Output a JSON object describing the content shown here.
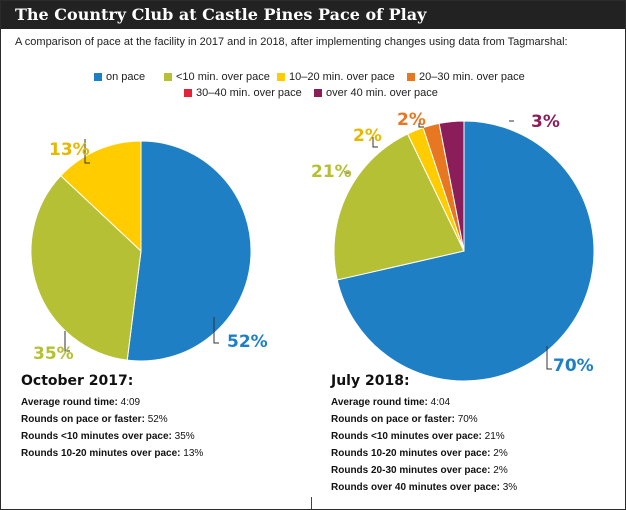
{
  "title": "The Country Club at Castle Pines Pace of Play",
  "subtitle": "A comparison of pace at the facility in 2017 and in 2018, after implementing changes using data from Tagmarshal:",
  "legend": [
    {
      "label": "on pace",
      "color": "#1f7fc4"
    },
    {
      "label": "<10 min. over pace",
      "color": "#b5c034"
    },
    {
      "label": "10–20 min. over pace",
      "color": "#ffcc00"
    },
    {
      "label": "20–30 min. over pace",
      "color": "#e87722"
    },
    {
      "label": "30–40 min. over pace",
      "color": "#e2233a"
    },
    {
      "label": "over 40 min. over pace",
      "color": "#8b1e5a"
    }
  ],
  "chart_data": [
    {
      "type": "pie",
      "categories": [
        "on pace",
        "<10 min. over pace",
        "10–20 min. over pace"
      ],
      "values": [
        52,
        35,
        13
      ],
      "labels": [
        "52%",
        "35%",
        "13%"
      ],
      "colors": [
        "#1f7fc4",
        "#b5c034",
        "#ffcc00"
      ]
    },
    {
      "type": "pie",
      "categories": [
        "on pace",
        "<10 min. over pace",
        "10–20 min. over pace",
        "20–30 min. over pace",
        "over 40 min. over pace"
      ],
      "values": [
        70,
        21,
        2,
        2,
        3
      ],
      "labels": [
        "70%",
        "21%",
        "2%",
        "2%",
        "3%"
      ],
      "colors": [
        "#1f7fc4",
        "#b5c034",
        "#ffcc00",
        "#e87722",
        "#8b1e5a"
      ]
    }
  ],
  "left": {
    "heading": "October 2017:",
    "rows": [
      {
        "k": "Average round time:",
        "v": "4:09"
      },
      {
        "k": "Rounds on pace or faster:",
        "v": "52%"
      },
      {
        "k": "Rounds <10 minutes over pace:",
        "v": "35%"
      },
      {
        "k": "Rounds 10-20 minutes over pace:",
        "v": "13%"
      }
    ]
  },
  "right": {
    "heading": "July 2018:",
    "rows": [
      {
        "k": "Average round time:",
        "v": "4:04"
      },
      {
        "k": "Rounds on pace or faster:",
        "v": "70%"
      },
      {
        "k": "Rounds <10 minutes over pace:",
        "v": "21%"
      },
      {
        "k": "Rounds 10-20 minutes over pace:",
        "v": "2%"
      },
      {
        "k": "Rounds 20-30 minutes over pace:",
        "v": "2%"
      },
      {
        "k": "Rounds over 40 minutes over pace:",
        "v": "3%"
      }
    ]
  }
}
